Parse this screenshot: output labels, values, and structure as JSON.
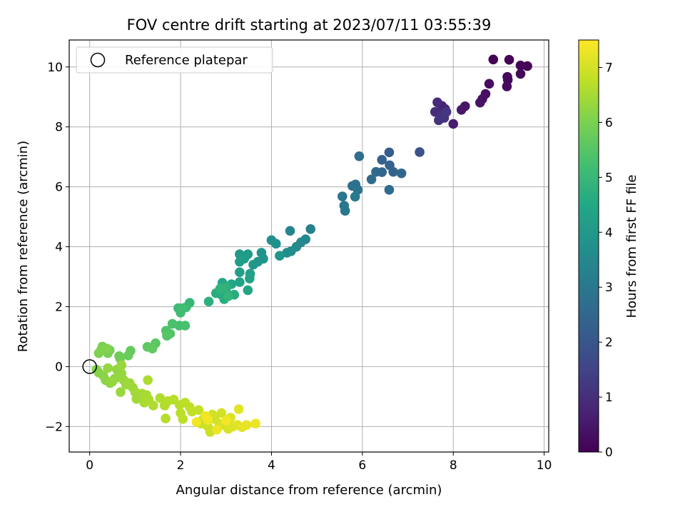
{
  "chart_data": {
    "type": "scatter",
    "title": "FOV centre drift starting at 2023/07/11 03:55:39",
    "xlabel": "Angular distance from reference (arcmin)",
    "ylabel": "Rotation from reference (arcmin)",
    "xlim": [
      -0.45,
      10.1
    ],
    "ylim": [
      -2.85,
      10.9
    ],
    "xticks": [
      0,
      2,
      4,
      6,
      8,
      10
    ],
    "yticks": [
      -2,
      0,
      2,
      4,
      6,
      8,
      10
    ],
    "grid": true,
    "legend": {
      "placement": "top-left",
      "label": "Reference platepar"
    },
    "reference_point": {
      "x": 0,
      "y": 0
    },
    "colorbar": {
      "label": "Hours from first FF file",
      "range": [
        0,
        7.5
      ],
      "ticks": [
        0,
        1,
        2,
        3,
        4,
        5,
        6,
        7
      ],
      "colormap": "viridis"
    },
    "points": [
      [
        8.88,
        10.25,
        0.02
      ],
      [
        9.23,
        10.24,
        0.05
      ],
      [
        9.48,
        10.05,
        0.08
      ],
      [
        9.63,
        10.03,
        0.1
      ],
      [
        9.48,
        9.77,
        0.12
      ],
      [
        9.19,
        9.67,
        0.15
      ],
      [
        9.2,
        9.57,
        0.18
      ],
      [
        9.18,
        9.35,
        0.2
      ],
      [
        8.79,
        9.44,
        0.25
      ],
      [
        8.71,
        9.1,
        0.3
      ],
      [
        8.64,
        8.93,
        0.35
      ],
      [
        8.59,
        8.81,
        0.38
      ],
      [
        8.26,
        8.69,
        0.45
      ],
      [
        8.18,
        8.57,
        0.5
      ],
      [
        8.0,
        8.1,
        0.6
      ],
      [
        7.75,
        8.7,
        0.72
      ],
      [
        7.82,
        8.6,
        0.78
      ],
      [
        7.7,
        8.5,
        0.85
      ],
      [
        7.65,
        8.82,
        0.9
      ],
      [
        7.6,
        8.5,
        0.95
      ],
      [
        7.72,
        8.35,
        1.0
      ],
      [
        7.78,
        8.4,
        1.05
      ],
      [
        7.68,
        8.22,
        1.1
      ],
      [
        7.8,
        8.3,
        1.15
      ],
      [
        7.85,
        8.5,
        1.2
      ],
      [
        7.26,
        7.16,
        1.9
      ],
      [
        6.59,
        7.15,
        2.2
      ],
      [
        6.43,
        6.9,
        2.3
      ],
      [
        6.6,
        6.72,
        2.35
      ],
      [
        6.68,
        6.5,
        2.4
      ],
      [
        6.86,
        6.45,
        2.45
      ],
      [
        6.43,
        6.49,
        2.5
      ],
      [
        6.3,
        6.5,
        2.55
      ],
      [
        6.2,
        6.25,
        2.6
      ],
      [
        6.59,
        5.9,
        2.65
      ],
      [
        5.93,
        7.02,
        2.7
      ],
      [
        5.85,
        6.08,
        2.75
      ],
      [
        5.78,
        6.03,
        2.8
      ],
      [
        5.9,
        5.9,
        2.85
      ],
      [
        5.56,
        5.68,
        2.9
      ],
      [
        5.6,
        5.37,
        2.95
      ],
      [
        5.62,
        5.2,
        3.0
      ],
      [
        5.84,
        5.67,
        3.05
      ],
      [
        4.86,
        4.59,
        3.3
      ],
      [
        4.41,
        4.53,
        3.4
      ],
      [
        4.75,
        4.25,
        3.45
      ],
      [
        4.65,
        4.15,
        3.5
      ],
      [
        4.55,
        4.0,
        3.55
      ],
      [
        4.43,
        3.85,
        3.6
      ],
      [
        4.34,
        3.8,
        3.65
      ],
      [
        4.0,
        4.22,
        3.7
      ],
      [
        4.1,
        4.1,
        3.75
      ],
      [
        3.78,
        3.8,
        3.8
      ],
      [
        3.82,
        3.6,
        3.85
      ],
      [
        3.7,
        3.5,
        3.9
      ],
      [
        3.6,
        3.4,
        3.95
      ],
      [
        4.18,
        3.7,
        3.9
      ],
      [
        3.3,
        3.75,
        4.0
      ],
      [
        3.48,
        3.75,
        4.05
      ],
      [
        3.4,
        3.6,
        4.1
      ],
      [
        3.3,
        3.5,
        4.15
      ],
      [
        3.53,
        3.1,
        4.2
      ],
      [
        3.3,
        3.15,
        4.25
      ],
      [
        3.52,
        2.94,
        4.3
      ],
      [
        3.3,
        2.82,
        4.35
      ],
      [
        3.48,
        2.55,
        4.4
      ],
      [
        3.12,
        2.75,
        4.45
      ],
      [
        2.92,
        2.8,
        4.5
      ],
      [
        3.0,
        2.55,
        4.55
      ],
      [
        2.9,
        2.4,
        4.6
      ],
      [
        3.18,
        2.4,
        4.62
      ],
      [
        2.96,
        2.25,
        4.65
      ],
      [
        2.78,
        2.45,
        4.7
      ],
      [
        2.62,
        2.17,
        4.75
      ],
      [
        3.0,
        2.65,
        4.8
      ],
      [
        2.87,
        2.6,
        4.85
      ],
      [
        3.05,
        2.35,
        4.9
      ],
      [
        2.2,
        2.13,
        5.0
      ],
      [
        2.12,
        1.98,
        5.05
      ],
      [
        1.95,
        1.95,
        5.1
      ],
      [
        2.0,
        1.8,
        5.15
      ],
      [
        2.05,
        1.95,
        5.2
      ],
      [
        1.97,
        1.37,
        5.25
      ],
      [
        2.1,
        1.37,
        5.3
      ],
      [
        1.82,
        1.43,
        5.35
      ],
      [
        1.68,
        1.2,
        5.4
      ],
      [
        1.77,
        1.1,
        5.45
      ],
      [
        1.7,
        1.03,
        5.5
      ],
      [
        1.45,
        0.78,
        5.55
      ],
      [
        1.27,
        0.66,
        5.6
      ],
      [
        1.38,
        0.6,
        5.65
      ],
      [
        0.9,
        0.53,
        5.7
      ],
      [
        0.85,
        0.37,
        5.75
      ],
      [
        0.65,
        0.35,
        5.8
      ],
      [
        0.67,
        0.27,
        5.85
      ],
      [
        0.44,
        0.55,
        5.9
      ],
      [
        0.4,
        0.45,
        5.95
      ],
      [
        0.28,
        0.67,
        6.0
      ],
      [
        0.25,
        0.55,
        6.02
      ],
      [
        0.2,
        0.45,
        6.05
      ],
      [
        0.38,
        0.6,
        6.08
      ],
      [
        0.15,
        -0.1,
        6.1
      ],
      [
        0.2,
        -0.2,
        6.12
      ],
      [
        0.3,
        -0.3,
        6.15
      ],
      [
        0.35,
        -0.45,
        6.18
      ],
      [
        0.45,
        -0.55,
        6.2
      ],
      [
        0.55,
        -0.4,
        6.22
      ],
      [
        0.6,
        -0.1,
        6.25
      ],
      [
        0.7,
        -0.22,
        6.28
      ],
      [
        0.65,
        -0.35,
        6.3
      ],
      [
        0.4,
        -0.05,
        6.3
      ],
      [
        0.75,
        -0.45,
        6.32
      ],
      [
        0.5,
        -0.5,
        6.33
      ],
      [
        0.7,
        0.05,
        6.34
      ],
      [
        0.68,
        -0.85,
        6.35
      ],
      [
        0.8,
        -0.6,
        6.36
      ],
      [
        0.95,
        -0.7,
        6.38
      ],
      [
        0.88,
        -0.55,
        6.4
      ],
      [
        1.0,
        -0.85,
        6.42
      ],
      [
        1.03,
        -1.08,
        6.45
      ],
      [
        1.15,
        -0.9,
        6.48
      ],
      [
        1.25,
        -0.95,
        6.5
      ],
      [
        1.2,
        -1.2,
        6.52
      ],
      [
        1.3,
        -1.1,
        6.55
      ],
      [
        1.28,
        -0.45,
        6.56
      ],
      [
        1.4,
        -1.3,
        6.58
      ],
      [
        1.55,
        -1.05,
        6.6
      ],
      [
        1.65,
        -1.3,
        6.63
      ],
      [
        1.72,
        -1.15,
        6.65
      ],
      [
        1.67,
        -1.73,
        6.66
      ],
      [
        1.85,
        -1.1,
        6.68
      ],
      [
        1.98,
        -1.28,
        6.7
      ],
      [
        2.0,
        -1.55,
        6.72
      ],
      [
        2.05,
        -1.75,
        6.74
      ],
      [
        2.1,
        -1.2,
        6.75
      ],
      [
        2.2,
        -1.35,
        6.77
      ],
      [
        2.25,
        -1.5,
        6.8
      ],
      [
        2.4,
        -1.45,
        6.82
      ],
      [
        2.5,
        -1.75,
        6.84
      ],
      [
        2.55,
        -1.85,
        6.86
      ],
      [
        2.45,
        -1.9,
        6.88
      ],
      [
        2.6,
        -2.0,
        6.9
      ],
      [
        2.65,
        -2.18,
        6.92
      ],
      [
        2.75,
        -1.75,
        6.95
      ],
      [
        2.7,
        -1.6,
        6.97
      ],
      [
        2.85,
        -1.9,
        7.0
      ],
      [
        2.9,
        -1.55,
        7.02
      ],
      [
        2.95,
        -1.95,
        7.05
      ],
      [
        3.05,
        -2.08,
        7.08
      ],
      [
        3.1,
        -1.7,
        7.1
      ],
      [
        3.15,
        -2.0,
        7.12
      ],
      [
        3.25,
        -1.95,
        7.15
      ],
      [
        3.28,
        -1.42,
        7.18
      ],
      [
        3.35,
        -2.02,
        7.2
      ],
      [
        3.45,
        -1.95,
        7.25
      ],
      [
        3.65,
        -1.9,
        7.3
      ],
      [
        2.8,
        -2.1,
        7.32
      ],
      [
        2.55,
        -1.65,
        7.34
      ],
      [
        2.35,
        -1.85,
        7.36
      ],
      [
        2.6,
        -1.78,
        7.38
      ],
      [
        3.0,
        -1.8,
        7.4
      ]
    ]
  }
}
